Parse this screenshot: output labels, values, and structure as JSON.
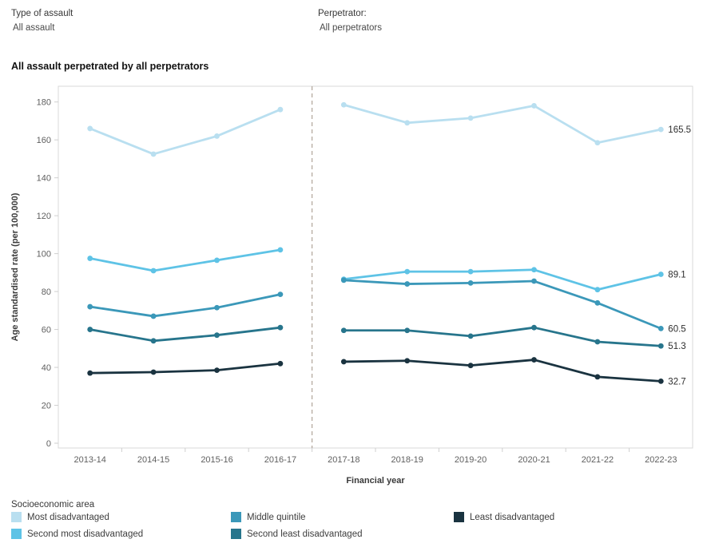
{
  "header": {
    "filters": [
      {
        "label": "Type of assault",
        "value": "All assault"
      },
      {
        "label": "Perpetrator:",
        "value": "All perpetrators"
      }
    ]
  },
  "title": "All assault perpetrated by all perpetrators",
  "chart_data": {
    "type": "line",
    "title": "All assault perpetrated by all perpetrators",
    "xlabel": "Financial year",
    "ylabel": "Age standardised rate (per 100,000)",
    "ylim": [
      0,
      180
    ],
    "ytick_step": 20,
    "grid": false,
    "legend_position": "bottom",
    "categories": [
      "2013-14",
      "2014-15",
      "2015-16",
      "2016-17",
      "2017-18",
      "2018-19",
      "2019-20",
      "2020-21",
      "2021-22",
      "2022-23"
    ],
    "break_after": "2016-17",
    "separator_style": "dashed",
    "separator_color": "#b5aa9f",
    "series": [
      {
        "name": "Most disadvantaged",
        "color": "#b9dff0",
        "values": [
          166,
          152.5,
          162,
          176,
          178.5,
          169,
          171.5,
          178,
          158.5,
          165.5
        ],
        "end_label": "165.5"
      },
      {
        "name": "Second most disadvantaged",
        "color": "#5ec3e6",
        "values": [
          97.5,
          91,
          96.5,
          102,
          86.5,
          90.5,
          90.5,
          91.5,
          81,
          89.1
        ],
        "end_label": "89.1"
      },
      {
        "name": "Middle quintile",
        "color": "#3b98b9",
        "values": [
          72,
          67,
          71.5,
          78.5,
          86,
          84,
          84.5,
          85.5,
          74,
          60.5
        ],
        "end_label": "60.5"
      },
      {
        "name": "Second least disadvantaged",
        "color": "#27758c",
        "values": [
          60,
          54,
          57,
          61,
          59.5,
          59.5,
          56.5,
          61,
          53.5,
          51.3
        ],
        "end_label": "51.3"
      },
      {
        "name": "Least disadvantaged",
        "color": "#1a3340",
        "values": [
          37,
          37.5,
          38.5,
          42,
          43,
          43.5,
          41,
          44,
          35,
          32.7
        ],
        "end_label": "32.7"
      }
    ]
  },
  "legend": {
    "title": "Socioeconomic area",
    "items": [
      {
        "label": "Most disadvantaged",
        "series": 0,
        "col": 0,
        "row": 0
      },
      {
        "label": "Second most disadvantaged",
        "series": 1,
        "col": 0,
        "row": 1
      },
      {
        "label": "Middle quintile",
        "series": 2,
        "col": 1,
        "row": 0
      },
      {
        "label": "Second least disadvantaged",
        "series": 3,
        "col": 1,
        "row": 1
      },
      {
        "label": "Least disadvantaged",
        "series": 4,
        "col": 2,
        "row": 0
      }
    ]
  }
}
